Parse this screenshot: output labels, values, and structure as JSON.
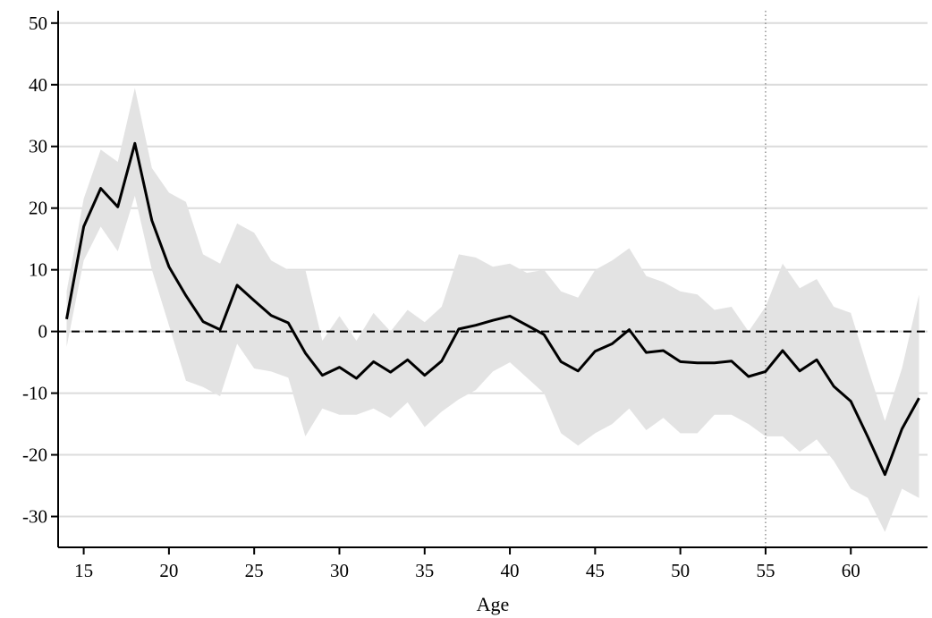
{
  "chart_data": {
    "type": "line",
    "title": "",
    "xlabel": "Age",
    "ylabel": "",
    "xlim": [
      13.5,
      64.5
    ],
    "ylim": [
      -35,
      52
    ],
    "xticks": [
      15,
      20,
      25,
      30,
      35,
      40,
      45,
      50,
      55,
      60
    ],
    "yticks": [
      -30,
      -20,
      -10,
      0,
      10,
      20,
      30,
      40,
      50
    ],
    "grid": true,
    "legend": "none",
    "reference_lines": [
      {
        "axis": "y",
        "value": 0,
        "style": "dashed"
      },
      {
        "axis": "x",
        "value": 55,
        "style": "dotted"
      }
    ],
    "colors": {
      "line": "#000000",
      "band": "#e3e3e3",
      "grid": "#dcdcdc"
    },
    "series": [
      {
        "x": [
          14,
          15,
          16,
          17,
          18,
          19,
          20,
          21,
          22,
          23,
          24,
          25,
          26,
          27,
          28,
          29,
          30,
          31,
          32,
          33,
          34,
          35,
          36,
          37,
          38,
          39,
          40,
          41,
          42,
          43,
          44,
          45,
          46,
          47,
          48,
          49,
          50,
          51,
          52,
          53,
          54,
          55,
          56,
          57,
          58,
          59,
          60,
          61,
          62,
          63,
          64
        ],
        "values": [
          2,
          17,
          23.2,
          20.2,
          30.5,
          18,
          10.5,
          5.8,
          1.6,
          0.3,
          7.5,
          5,
          2.6,
          1.4,
          -3.5,
          -7.1,
          -5.8,
          -7.6,
          -4.9,
          -6.6,
          -4.6,
          -7.1,
          -4.8,
          0.4,
          1,
          1.8,
          2.5,
          1,
          -0.5,
          -4.9,
          -6.4,
          -3.2,
          -2,
          0.3,
          -3.4,
          -3.1,
          -4.9,
          -5.1,
          -5.1,
          -4.8,
          -7.3,
          -6.5,
          -3.1,
          -6.4,
          -4.6,
          -8.9,
          -11.3,
          -17.1,
          -23.2,
          -15.8,
          -10.8
        ],
        "lower": [
          -2.5,
          11.5,
          17,
          13,
          22,
          10,
          1,
          -8,
          -9,
          -10.5,
          -2,
          -6,
          -6.5,
          -7.5,
          -17,
          -12.5,
          -13.5,
          -13.5,
          -12.5,
          -14,
          -11.5,
          -15.5,
          -13,
          -11,
          -9.5,
          -6.5,
          -5,
          -7.5,
          -10,
          -16.5,
          -18.5,
          -16.5,
          -15,
          -12.5,
          -16,
          -14,
          -16.5,
          -16.5,
          -13.5,
          -13.5,
          -15,
          -17,
          -17,
          -19.5,
          -17.5,
          -21,
          -25.5,
          -27,
          -32.5,
          -25.5,
          -27
        ],
        "upper": [
          6.5,
          21.5,
          29.5,
          27.5,
          39.5,
          26.5,
          22.5,
          21,
          12.5,
          11,
          17.5,
          16,
          11.5,
          10,
          10,
          -1.5,
          2.5,
          -1.5,
          3,
          0,
          3.5,
          1.5,
          4,
          12.5,
          12,
          10.5,
          11,
          9.5,
          10,
          6.5,
          5.5,
          10,
          11.5,
          13.5,
          9,
          8,
          6.5,
          6,
          3.5,
          4,
          0,
          4,
          11,
          7,
          8.5,
          4,
          3,
          -6,
          -14.5,
          -6,
          6
        ]
      }
    ]
  }
}
